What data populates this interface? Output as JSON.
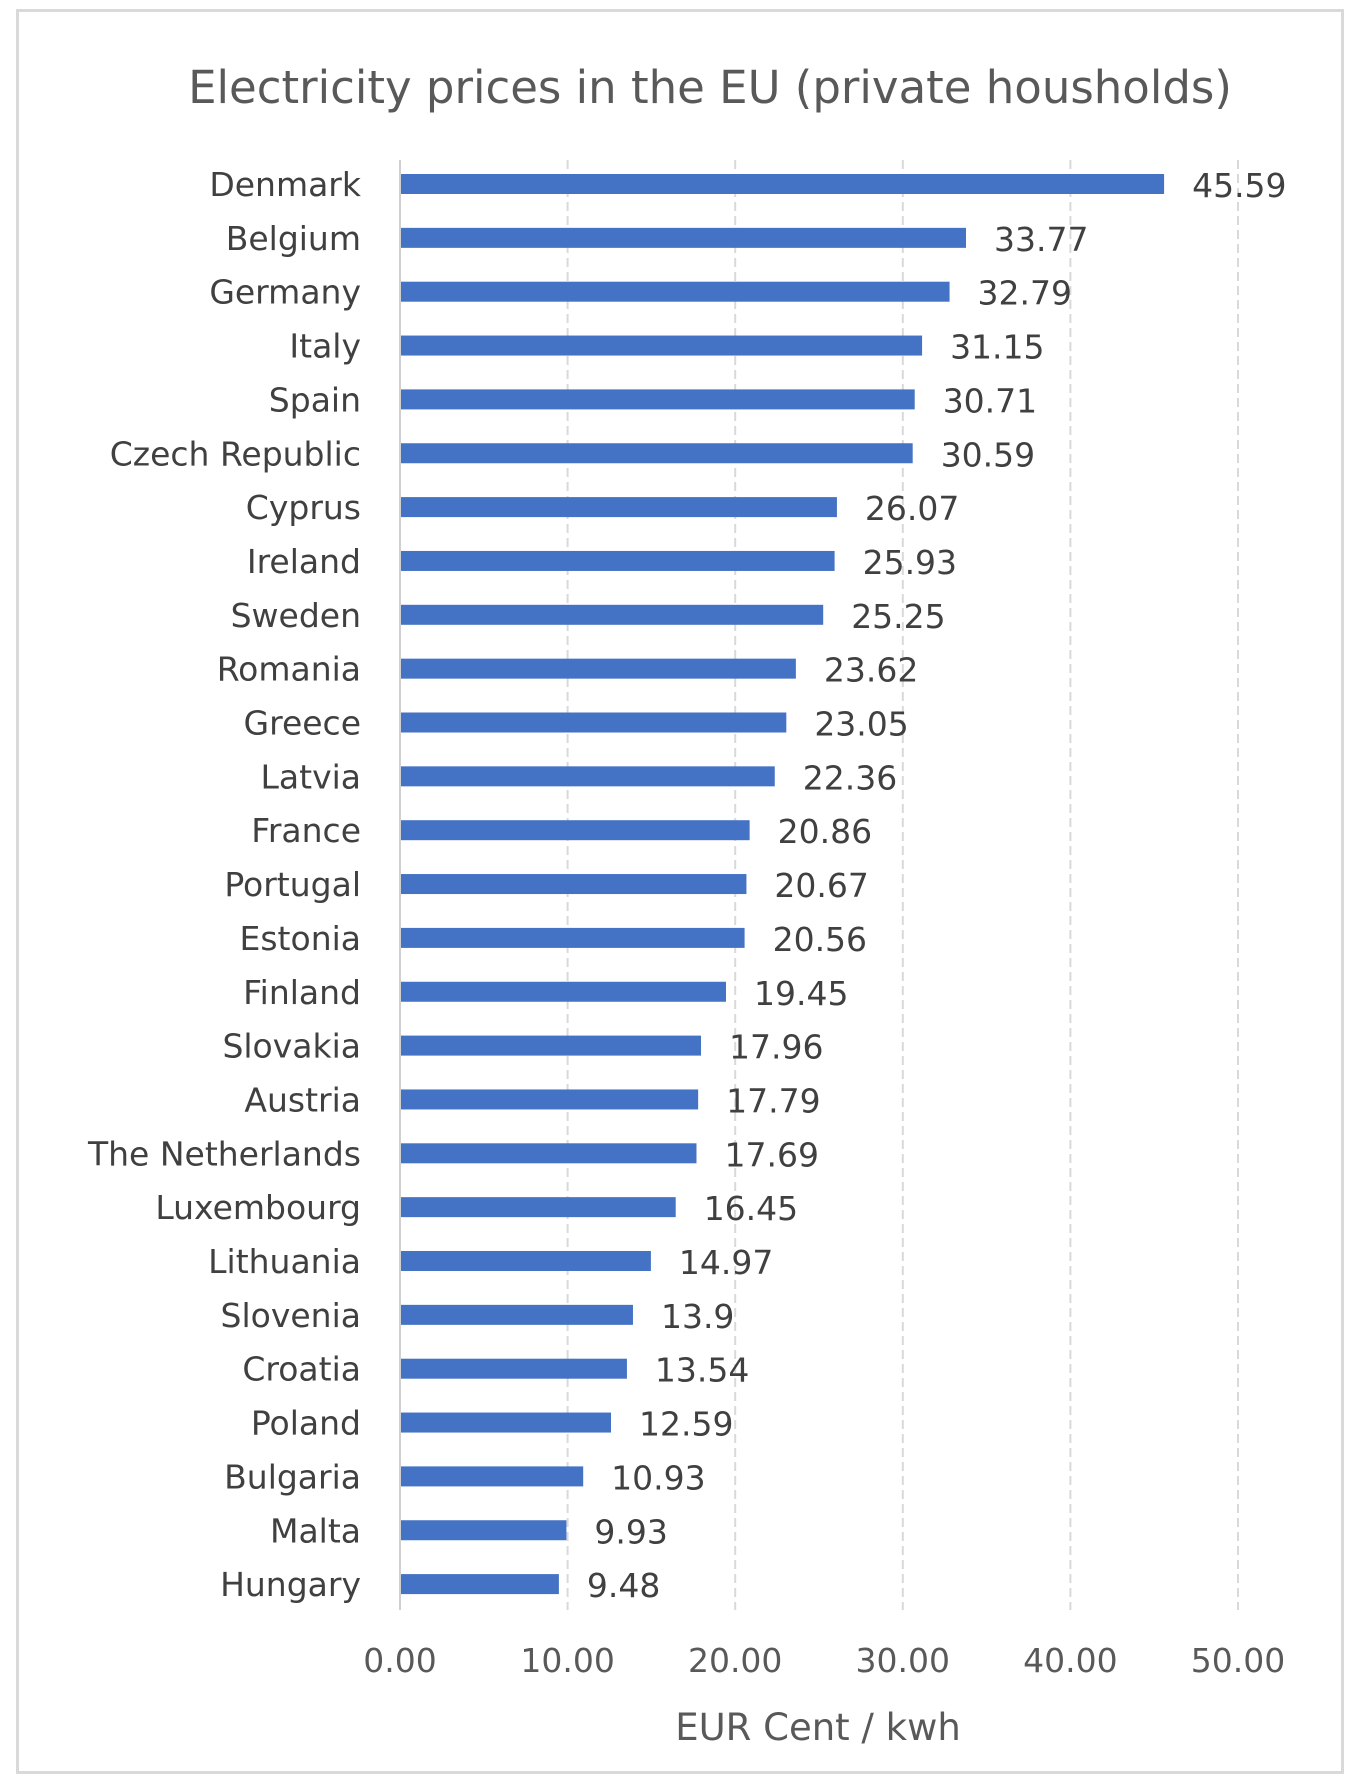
{
  "chart_data": {
    "type": "bar",
    "orientation": "horizontal",
    "title": "Electricity prices in the EU (private housholds)",
    "xlabel": "EUR Cent / kwh",
    "ylabel": "",
    "xlim": [
      0,
      50
    ],
    "x_ticks": [
      "0.00",
      "10.00",
      "20.00",
      "30.00",
      "40.00",
      "50.00"
    ],
    "x_tick_values": [
      0,
      10,
      20,
      30,
      40,
      50
    ],
    "grid": "vertical dashed",
    "legend": "none",
    "bar_color": "#4472c4",
    "categories": [
      "Denmark",
      "Belgium",
      "Germany",
      "Italy",
      "Spain",
      "Czech Republic",
      "Cyprus",
      "Ireland",
      "Sweden",
      "Romania",
      "Greece",
      "Latvia",
      "France",
      "Portugal",
      "Estonia",
      "Finland",
      "Slovakia",
      "Austria",
      "The Netherlands",
      "Luxembourg",
      "Lithuania",
      "Slovenia",
      "Croatia",
      "Poland",
      "Bulgaria",
      "Malta",
      "Hungary"
    ],
    "values": [
      45.59,
      33.77,
      32.79,
      31.15,
      30.71,
      30.59,
      26.07,
      25.93,
      25.25,
      23.62,
      23.05,
      22.36,
      20.86,
      20.67,
      20.56,
      19.45,
      17.96,
      17.79,
      17.69,
      16.45,
      14.97,
      13.9,
      13.54,
      12.59,
      10.93,
      9.93,
      9.48
    ],
    "value_labels": [
      "45.59",
      "33.77",
      "32.79",
      "31.15",
      "30.71",
      "30.59",
      "26.07",
      "25.93",
      "25.25",
      "23.62",
      "23.05",
      "22.36",
      "20.86",
      "20.67",
      "20.56",
      "19.45",
      "17.96",
      "17.79",
      "17.69",
      "16.45",
      "14.97",
      "13.9",
      "13.54",
      "12.59",
      "10.93",
      "9.93",
      "9.48"
    ]
  }
}
